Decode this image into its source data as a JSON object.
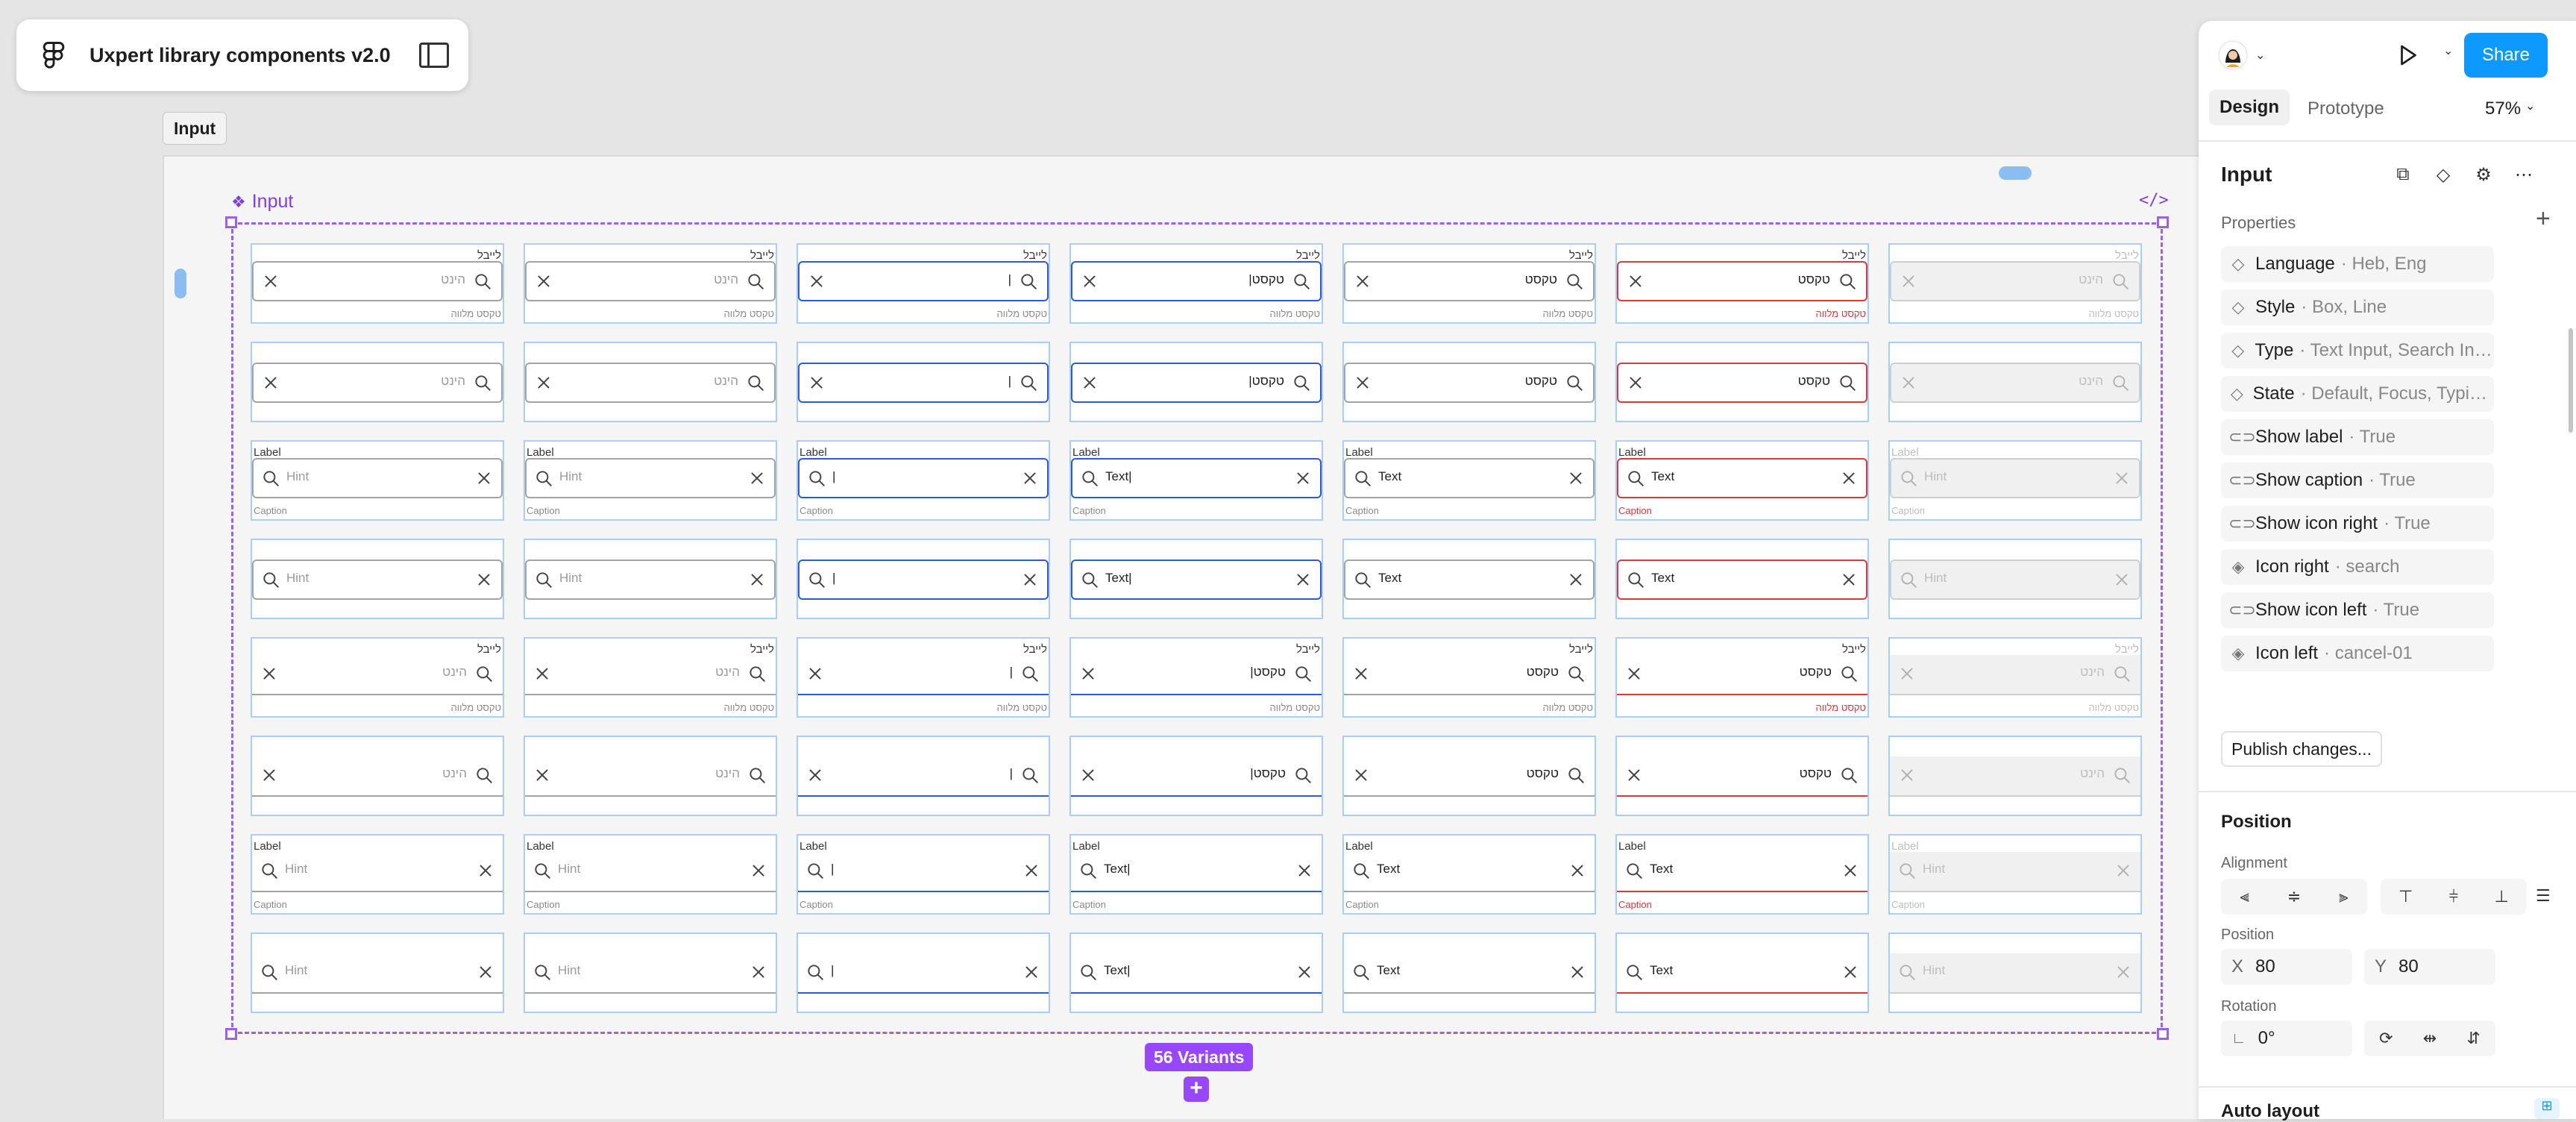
{
  "file": {
    "title": "Uxpert library components v2.0"
  },
  "canvas": {
    "frame_tag": "Input",
    "component_label": "Input",
    "variants_badge": "56 Variants",
    "add_variant": "+",
    "code_icon": "</>"
  },
  "grid": {
    "rows": [
      {
        "dir": "rtl",
        "style": "box",
        "label": true,
        "caption": true
      },
      {
        "dir": "rtl",
        "style": "box",
        "label": false,
        "caption": false
      },
      {
        "dir": "ltr",
        "style": "box",
        "label": true,
        "caption": true
      },
      {
        "dir": "ltr",
        "style": "box",
        "label": false,
        "caption": false
      },
      {
        "dir": "rtl",
        "style": "line",
        "label": true,
        "caption": true
      },
      {
        "dir": "rtl",
        "style": "line",
        "label": false,
        "caption": false
      },
      {
        "dir": "ltr",
        "style": "line",
        "label": true,
        "caption": true
      },
      {
        "dir": "ltr",
        "style": "line",
        "label": false,
        "caption": false
      }
    ],
    "states": [
      "default",
      "hover",
      "focus",
      "typing",
      "filled",
      "error",
      "disabled"
    ],
    "text": {
      "rtl": {
        "label": "לייבל",
        "caption": "טקסט מלווה",
        "hint": "הינט",
        "cursor": "|",
        "typing": "|טקסט",
        "filled": "טקסט"
      },
      "ltr": {
        "label": "Label",
        "caption": "Caption",
        "hint": "Hint",
        "cursor": "|",
        "typing": "Text|",
        "filled": "Text"
      }
    }
  },
  "panel": {
    "share_label": "Share",
    "tabs": [
      "Design",
      "Prototype"
    ],
    "active_tab": "Design",
    "zoom": "57%",
    "layer_name": "Input",
    "properties_title": "Properties",
    "properties": [
      {
        "icon": "variant-icon",
        "name": "Language",
        "value": "Heb, Eng"
      },
      {
        "icon": "variant-icon",
        "name": "Style",
        "value": "Box, Line"
      },
      {
        "icon": "variant-icon",
        "name": "Type",
        "value": "Text Input, Search Input"
      },
      {
        "icon": "variant-icon",
        "name": "State",
        "value": "Default, Focus, Typing, F..."
      },
      {
        "icon": "toggle-icon",
        "name": "Show label",
        "value": "True"
      },
      {
        "icon": "toggle-icon",
        "name": "Show caption",
        "value": "True"
      },
      {
        "icon": "toggle-icon",
        "name": "Show icon right",
        "value": "True"
      },
      {
        "icon": "instance-swap-icon",
        "name": "Icon right",
        "value": "search"
      },
      {
        "icon": "toggle-icon",
        "name": "Show icon left",
        "value": "True"
      },
      {
        "icon": "instance-swap-icon",
        "name": "Icon left",
        "value": "cancel-01"
      }
    ],
    "publish_label": "Publish changes...",
    "position_title": "Position",
    "alignment_label": "Alignment",
    "position_label": "Position",
    "x_label": "X",
    "x_value": "80",
    "y_label": "Y",
    "y_value": "80",
    "rotation_label": "Rotation",
    "rotation_value": "0°",
    "auto_layout_title": "Auto layout",
    "colors": {
      "accent": "#0d99ff",
      "component": "#9747ff",
      "focus": "#2e5bcf",
      "error": "#d63a3a"
    }
  }
}
